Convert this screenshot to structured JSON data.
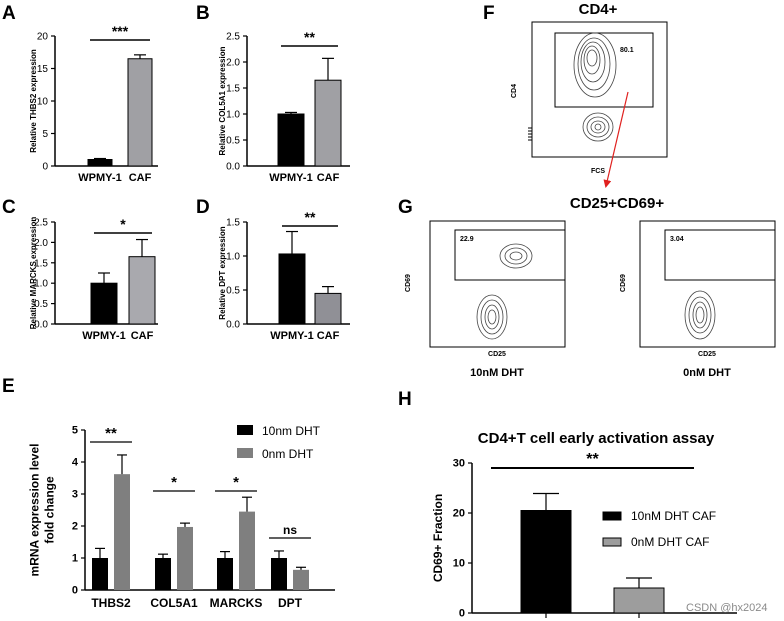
{
  "panels": {
    "A": "A",
    "B": "B",
    "C": "C",
    "D": "D",
    "E": "E",
    "F": "F",
    "G": "G",
    "H": "H"
  },
  "chart_data": [
    {
      "id": "A",
      "type": "bar",
      "categories": [
        "WPMY-1",
        "CAF"
      ],
      "values": [
        1.0,
        16.5
      ],
      "errors": [
        0.15,
        0.6
      ],
      "colors": [
        "#000000",
        "#a0a0a4"
      ],
      "ylabel": "Relative THBS2 expression",
      "ylim": [
        0,
        20
      ],
      "yticks": [
        "0",
        "5",
        "10",
        "15",
        "20"
      ],
      "significance": "***"
    },
    {
      "id": "B",
      "type": "bar",
      "categories": [
        "WPMY-1",
        "CAF"
      ],
      "values": [
        1.0,
        1.65
      ],
      "errors": [
        0.03,
        0.42
      ],
      "colors": [
        "#000000",
        "#a0a0a4"
      ],
      "ylabel": "Relative COL5A1 expression",
      "ylim": [
        0,
        2.5
      ],
      "yticks": [
        "0.0",
        "0.5",
        "1.0",
        "1.5",
        "2.0",
        "2.5"
      ],
      "significance": "**"
    },
    {
      "id": "C",
      "type": "bar",
      "categories": [
        "WPMY-1",
        "CAF"
      ],
      "values": [
        1.0,
        1.65
      ],
      "errors": [
        0.25,
        0.42
      ],
      "colors": [
        "#000000",
        "#a9a9ae"
      ],
      "ylabel": "Relative MARCKS expression",
      "ylim": [
        0,
        2.5
      ],
      "yticks": [
        "0.0",
        "0.5",
        "1.0",
        "1.5",
        "2.0",
        "2.5"
      ],
      "significance": "*"
    },
    {
      "id": "D",
      "type": "bar",
      "categories": [
        "WPMY-1",
        "CAF"
      ],
      "values": [
        1.03,
        0.45
      ],
      "errors": [
        0.33,
        0.1
      ],
      "colors": [
        "#000000",
        "#909096"
      ],
      "ylabel": "Relative DPT expression",
      "ylim": [
        0,
        1.5
      ],
      "yticks": [
        "0.0",
        "0.5",
        "1.0",
        "1.5"
      ],
      "significance": "**"
    },
    {
      "id": "E",
      "type": "bar",
      "categories": [
        "THBS2",
        "COL5A1",
        "MARCKS",
        "DPT"
      ],
      "series": [
        {
          "name": "10nm DHT",
          "values": [
            1.0,
            1.0,
            1.0,
            1.0
          ],
          "errors": [
            0.3,
            0.12,
            0.2,
            0.22
          ],
          "color": "#000000"
        },
        {
          "name": "0nm DHT",
          "values": [
            3.62,
            1.97,
            2.45,
            0.63
          ],
          "errors": [
            0.6,
            0.12,
            0.45,
            0.08
          ],
          "color": "#7f7f7f"
        }
      ],
      "ylabel": "mRNA expression level\nfold change",
      "ylim": [
        0,
        5
      ],
      "yticks": [
        "0",
        "1",
        "2",
        "3",
        "4",
        "5"
      ],
      "significance": [
        "**",
        "*",
        "*",
        "ns"
      ],
      "legend_position": "top-right"
    },
    {
      "id": "H",
      "type": "bar",
      "title": "CD4+T cell early activation assay",
      "categories": [
        "10nM DHT CAF",
        "0nM DHT CAF"
      ],
      "values": [
        20.5,
        5.0
      ],
      "errors": [
        3.4,
        2.0
      ],
      "colors": [
        "#000000",
        "#9d9d9d"
      ],
      "ylabel": "CD69+ Fraction",
      "ylim": [
        0,
        30
      ],
      "yticks": [
        "0",
        "10",
        "20",
        "30"
      ],
      "significance": "**",
      "legend_position": "right"
    }
  ],
  "flow": {
    "F": {
      "title": "CD4+",
      "gate_value": "80.1",
      "ylabel": "CD4",
      "xlabel": "FCS"
    },
    "G": {
      "title": "CD25+CD69+",
      "plots": [
        {
          "gate_value": "22.9",
          "ylabel": "CD69",
          "xlabel": "CD25",
          "caption": "10nM DHT"
        },
        {
          "gate_value": "3.04",
          "ylabel": "CD69",
          "xlabel": "CD25",
          "caption": "0nM DHT"
        }
      ]
    }
  },
  "watermark": "CSDN @hx2024"
}
